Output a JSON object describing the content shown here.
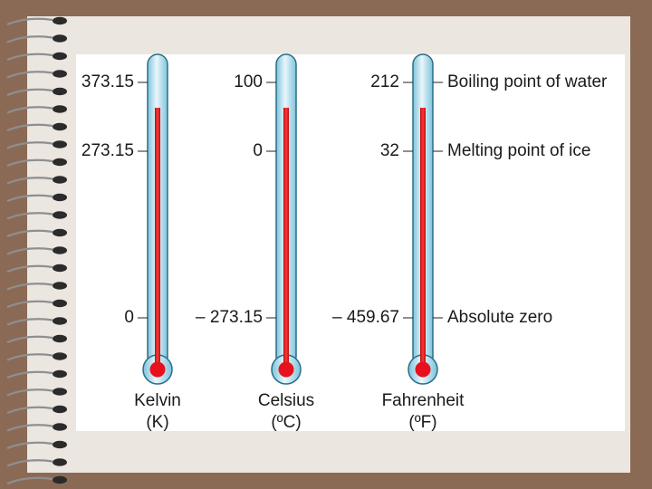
{
  "diagram": {
    "scales": [
      {
        "id": "kelvin",
        "name": "Kelvin",
        "unit": "(K)",
        "boiling": "373.15",
        "melting": "273.15",
        "absolute_zero": "0"
      },
      {
        "id": "celsius",
        "name": "Celsius",
        "unit": "(ºC)",
        "boiling": "100",
        "melting": "0",
        "absolute_zero": "– 273.15"
      },
      {
        "id": "fahrenheit",
        "name": "Fahrenheit",
        "unit": "(ºF)",
        "boiling": "212",
        "melting": "32",
        "absolute_zero": "– 459.67"
      }
    ],
    "reference_points": {
      "boiling": "Boiling point of water",
      "melting": "Melting point of ice",
      "absolute_zero": "Absolute zero"
    },
    "colors": {
      "mercury": "#e01b1b",
      "tube": "#bfe3f0",
      "bulb": "#e8101c"
    }
  }
}
